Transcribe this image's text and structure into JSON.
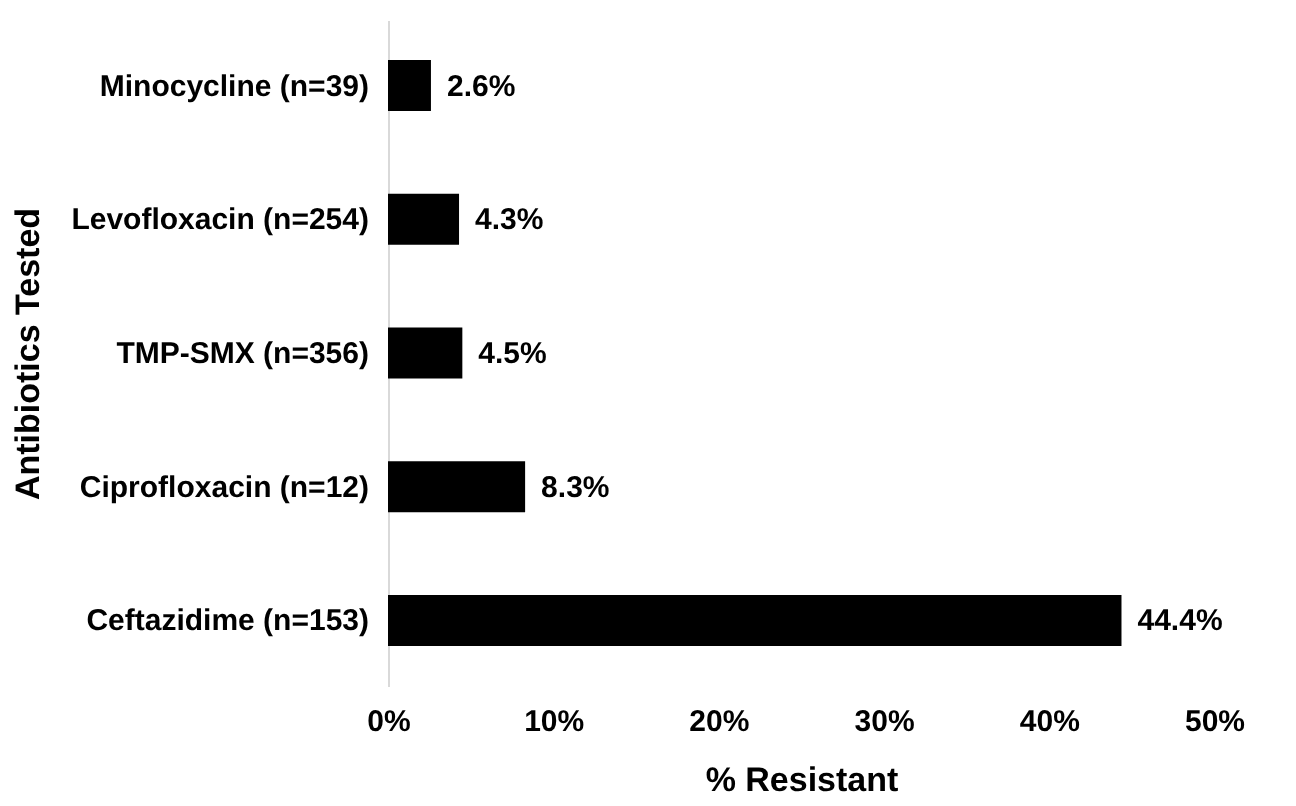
{
  "chart_data": {
    "type": "bar",
    "orientation": "horizontal",
    "xlabel": "% Resistant",
    "ylabel": "Antibiotics Tested",
    "categories": [
      "Minocycline (n=39)",
      "Levofloxacin (n=254)",
      "TMP-SMX (n=356)",
      "Ciprofloxacin (n=12)",
      "Ceftazidime (n=153)"
    ],
    "values": [
      2.6,
      4.3,
      4.5,
      8.3,
      44.4
    ],
    "value_labels": [
      "2.6%",
      "4.3%",
      "4.5%",
      "8.3%",
      "44.4%"
    ],
    "color": "#000000",
    "xlim": [
      0,
      50
    ],
    "xticks": [
      {
        "value": 0,
        "label": "0%"
      },
      {
        "value": 10,
        "label": "10%"
      },
      {
        "value": 20,
        "label": "20%"
      },
      {
        "value": 30,
        "label": "30%"
      },
      {
        "value": 40,
        "label": "40%"
      },
      {
        "value": 50,
        "label": "50%"
      }
    ],
    "grid": false
  }
}
